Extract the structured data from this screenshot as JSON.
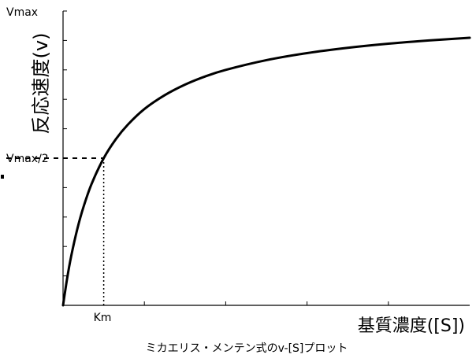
{
  "chart_data": {
    "type": "line",
    "title": "",
    "caption": "ミカエリス・メンテン式のv-[S]プロット",
    "ylabel": "反応速度(v)",
    "xlabel": "基質濃度([S])",
    "y_tick_labels": {
      "vmax": "Vmax",
      "half_vmax": "Vmax/2"
    },
    "x_tick_labels": {
      "km": "Km"
    },
    "params": {
      "vmax": 1,
      "km": 1
    },
    "xlim": [
      0,
      10
    ],
    "ylim": [
      0,
      1
    ],
    "y_ticks": [
      0.1,
      0.2,
      0.3,
      0.4,
      0.5,
      0.6,
      0.7,
      0.8,
      0.9,
      1.0
    ],
    "x_ticks": [
      0,
      2,
      4,
      6,
      8
    ],
    "grid": false,
    "series": [
      {
        "x": [
          0,
          0.1,
          0.2,
          0.35,
          0.5,
          0.7,
          1.0,
          1.3,
          1.6,
          2.0,
          2.5,
          3.0,
          3.5,
          4.0,
          5.0,
          6.0,
          7.0,
          8.0,
          9.0,
          10.0
        ],
        "values": [
          0,
          0.091,
          0.167,
          0.259,
          0.333,
          0.412,
          0.5,
          0.565,
          0.615,
          0.667,
          0.714,
          0.75,
          0.778,
          0.8,
          0.833,
          0.857,
          0.875,
          0.889,
          0.9,
          0.909
        ]
      }
    ],
    "guides": {
      "horizontal_at_y": 0.5,
      "vertical_at_x": 1.0
    }
  }
}
